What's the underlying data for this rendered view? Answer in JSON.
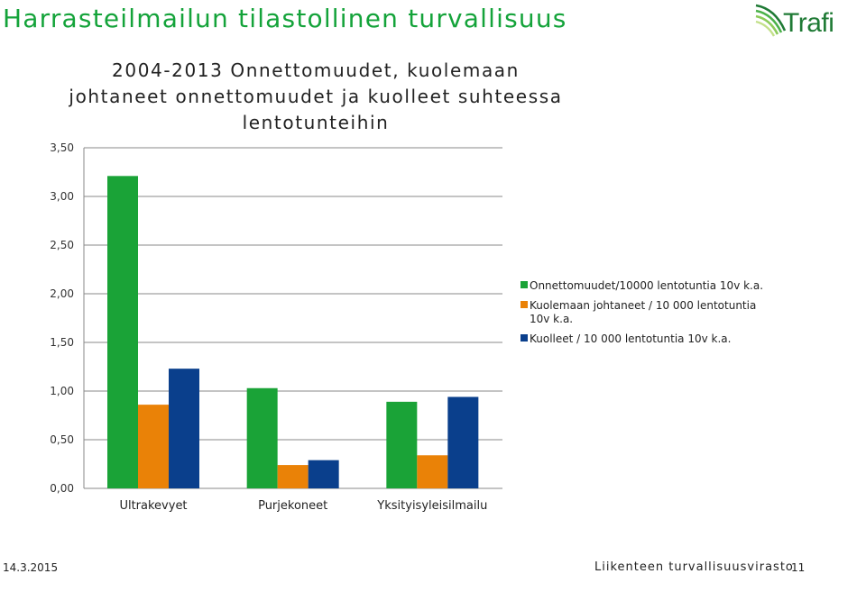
{
  "header": {
    "title": "Harrasteilmailun tilastollinen turvallisuus",
    "logo_text": "Trafi",
    "logo_icon": "trafi-swoosh-icon"
  },
  "colors": {
    "title_green": "#14a33a",
    "series_green": "#1aa337",
    "series_orange": "#ea8207",
    "series_blue": "#0a3f8c",
    "gridline": "#888888"
  },
  "chart_data": {
    "type": "bar",
    "title_lines": [
      "2004-2013 Onnettomuudet, kuolemaan",
      "johtaneet onnettomuudet ja kuolleet suhteessa",
      "lentotunteihin"
    ],
    "categories": [
      "Ultrakevyet",
      "Purjekoneet",
      "Yksityisyleisilmailu"
    ],
    "series": [
      {
        "name": "Onnettomuudet/10000 lentotuntia 10v k.a.",
        "values": [
          3.21,
          1.03,
          0.89
        ],
        "color": "#1aa337"
      },
      {
        "name": "Kuolemaan johtaneet / 10 000 lentotuntia 10v k.a.",
        "values": [
          0.86,
          0.24,
          0.34
        ],
        "color": "#ea8207"
      },
      {
        "name": "Kuolleet / 10 000 lentotuntia 10v k.a.",
        "values": [
          1.23,
          0.29,
          0.94
        ],
        "color": "#0a3f8c"
      }
    ],
    "yticks": [
      "0,00",
      "0,50",
      "1,00",
      "1,50",
      "2,00",
      "2,50",
      "3,00",
      "3,50"
    ],
    "ylim": [
      0,
      3.5
    ],
    "grid": true,
    "legend_position": "right"
  },
  "footer": {
    "date": "14.3.2015",
    "organization": "Liikenteen turvallisuusvirasto",
    "page": "11"
  }
}
